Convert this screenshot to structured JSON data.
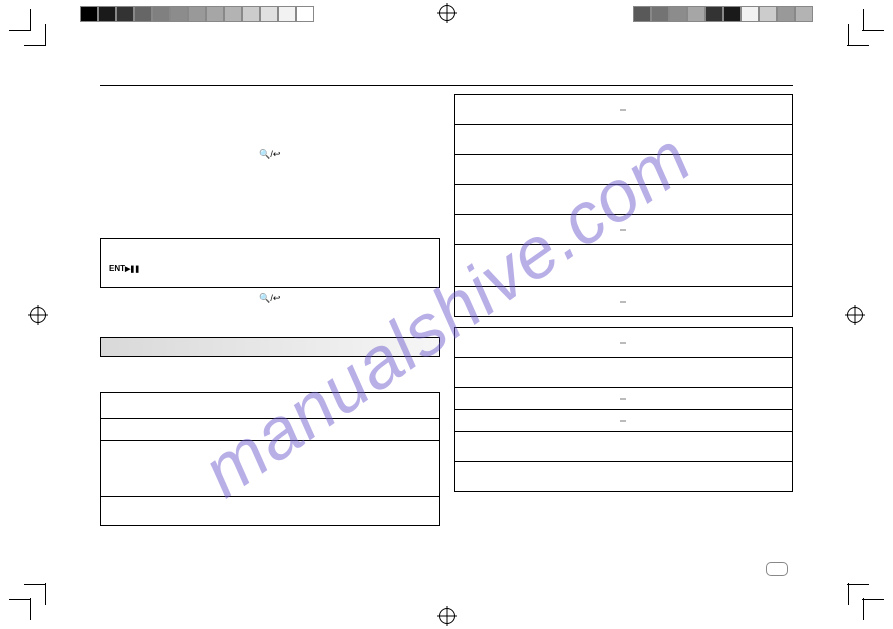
{
  "registration_marks": {
    "color": "#000000"
  },
  "color_strips": {
    "left": [
      "#000000",
      "#1a1a1a",
      "#333333",
      "#666666",
      "#808080",
      "#8c8c8c",
      "#999999",
      "#a6a6a6",
      "#b3b3b3",
      "#cccccc",
      "#e0e0e0",
      "#f2f2f2",
      "#ffffff"
    ],
    "right": [
      "#595959",
      "#737373",
      "#8c8c8c",
      "#a6a6a6",
      "#333333",
      "#1a1a1a",
      "#f2f2f2",
      "#cccccc",
      "#999999",
      "#b3b3b3"
    ]
  },
  "left_column": {
    "magnify_row_1": "🔍/↩",
    "ent_label": "ENT",
    "ent_icons": "▶❚❚",
    "magnify_row_2": "🔍/↩",
    "gradient": {
      "from": "#d9d9d9",
      "to": "#f6f6f6"
    }
  },
  "right_column": {
    "table1_rows": 7,
    "table2_rows": 6
  },
  "watermark": "manualshive.com",
  "watermark_color": "#6a5acd",
  "page_number_box": true
}
